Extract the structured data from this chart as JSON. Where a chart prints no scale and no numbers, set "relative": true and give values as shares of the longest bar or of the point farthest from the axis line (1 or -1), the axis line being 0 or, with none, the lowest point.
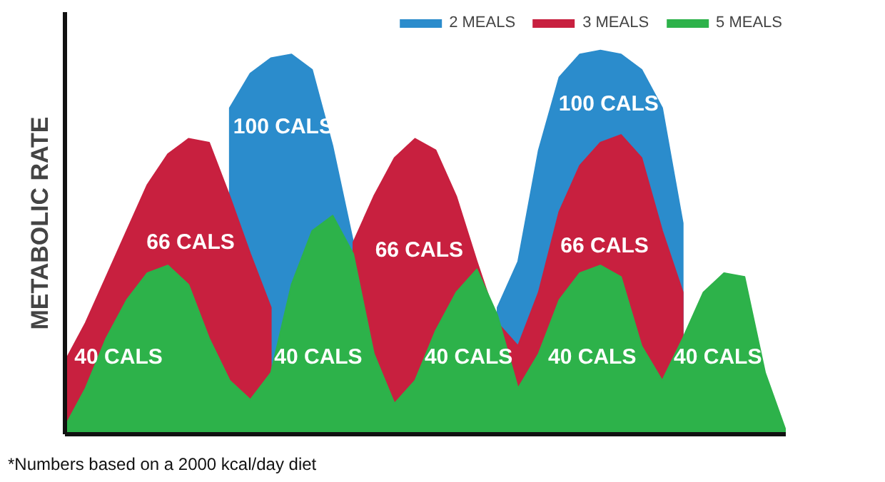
{
  "chart_data": {
    "type": "area",
    "relative": true,
    "ylabel": "METABOLIC RATE",
    "legend": "top right",
    "tick_labels": false,
    "categories": [
      null,
      null,
      null,
      null,
      null,
      null,
      null,
      null,
      null,
      null,
      null,
      null,
      null,
      null,
      null,
      null,
      null,
      null,
      null,
      null,
      null,
      null,
      null,
      null,
      null,
      null,
      null,
      null,
      null,
      null,
      null,
      null,
      null,
      null,
      null,
      null
    ],
    "series": [
      {
        "name": "2 MEALS",
        "color": "#2b8ccc",
        "values": [
          null,
          null,
          null,
          null,
          null,
          null,
          null,
          null,
          0.85,
          0.94,
          0.98,
          0.99,
          0.95,
          0.75,
          0.5,
          null,
          null,
          null,
          null,
          null,
          null,
          0.33,
          0.45,
          0.74,
          0.93,
          0.99,
          1,
          0.99,
          0.95,
          0.85,
          0.55,
          null,
          null,
          null,
          null,
          null
        ]
      },
      {
        "name": "3 MEALS",
        "color": "#c8203f",
        "values": [
          0.19,
          0.29,
          0.41,
          0.53,
          0.65,
          0.73,
          0.77,
          0.76,
          0.62,
          0.47,
          0.33,
          null,
          null,
          null,
          0.5,
          0.62,
          0.72,
          0.77,
          0.74,
          0.62,
          0.45,
          0.29,
          0.23,
          0.37,
          0.58,
          0.7,
          0.76,
          0.78,
          0.72,
          0.53,
          0.37,
          null,
          null,
          null,
          null,
          null
        ]
      },
      {
        "name": "5 MEALS",
        "color": "#2db24a",
        "values": [
          0.02,
          0.12,
          0.25,
          0.35,
          0.42,
          0.44,
          0.39,
          0.25,
          0.14,
          0.09,
          0.16,
          0.39,
          0.53,
          0.57,
          0.47,
          0.21,
          0.08,
          0.14,
          0.27,
          0.37,
          0.43,
          0.31,
          0.12,
          0.21,
          0.35,
          0.42,
          0.44,
          0.41,
          0.23,
          0.14,
          0.25,
          0.37,
          0.42,
          0.41,
          0.16,
          0.01
        ]
      }
    ],
    "annotations": [
      "66 CALS",
      "100 CALS",
      "40 CALS",
      "40 CALS",
      "66 CALS",
      "40 CALS",
      "100 CALS",
      "66 CALS",
      "40 CALS",
      "40 CALS",
      "*Numbers based on a 2000 kcal/day diet"
    ]
  }
}
